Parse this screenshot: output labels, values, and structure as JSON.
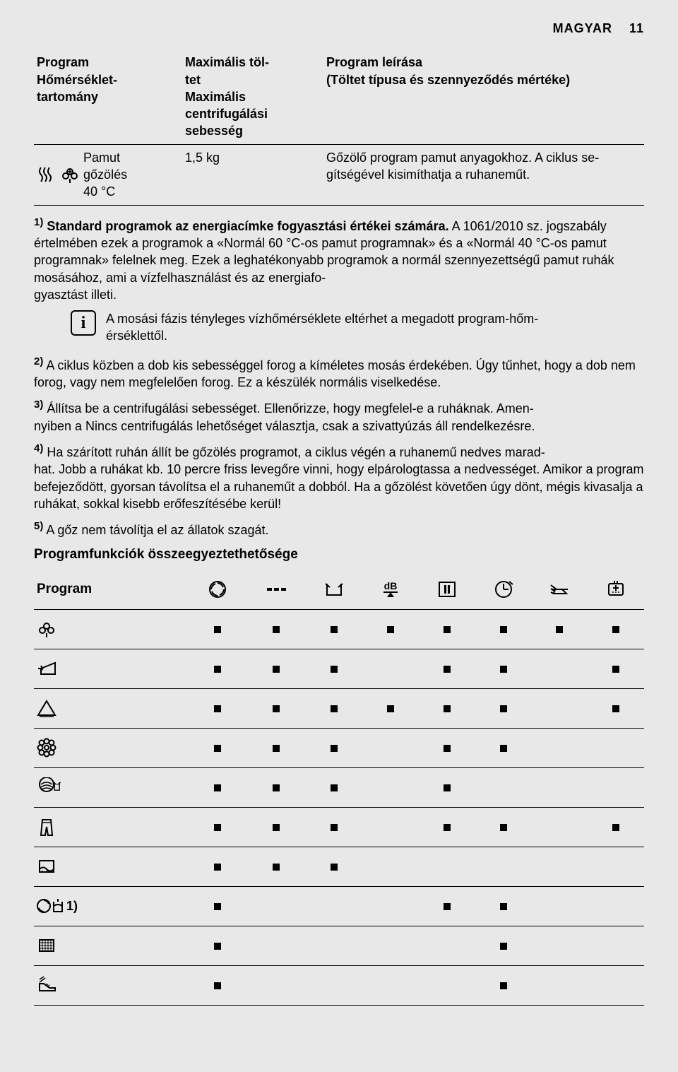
{
  "header": {
    "lang": "MAGYAR",
    "page": "11"
  },
  "desc_table": {
    "head": {
      "c1": "Program\nHőmérséklet-\ntartomány",
      "c2": "Maximális töl-\ntet\nMaximális\ncentrifugálási\nsebesség",
      "c3": "Program leírása\n(Töltet típusa és szennyeződés mértéke)"
    },
    "row": {
      "prog_name": "Pamut\ngőzölés\n40 °C",
      "load": "1,5 kg",
      "desc": "Gőzölő program pamut anyagokhoz. A ciklus se-\ngítségével kisimíthatja a ruhaneműt."
    }
  },
  "foot1_lead": "1)",
  "foot1_bold": " Standard programok az energiacímke fogyasztási értékei számára.",
  "foot1_rest": " A 1061/2010 sz. jogszabály értelmében ezek a programok a «Normál 60 °C-os pamut programnak» és a «Normál 40 °C-os pamut programnak» felelnek meg. Ezek a leghatékonyabb programok a normál szennyezettségű pamut ruhák mosásához, ami a vízfelhasználást és az energiafo-\ngyasztást illeti.",
  "info_text": "A mosási fázis tényleges vízhőmérséklete eltérhet a megadott program-hőm-\nérséklettől.",
  "foot2": "2) A ciklus közben a dob kis sebességgel forog a kíméletes mosás érdekében. Úgy tűnhet, hogy a dob nem forog, vagy nem megfelelően forog. Ez a készülék normális viselkedése.",
  "foot3": "3) Állítsa be a centrifugálási sebességet. Ellenőrizze, hogy megfelel-e a ruháknak. Amen-\nnyiben a Nincs centrifugálás lehetőséget választja, csak a szivattyúzás áll rendelkezésre.",
  "foot4": "4) Ha szárított ruhán állít be gőzölés programot, a ciklus végén a ruhanemű nedves marad-\nhat. Jobb a ruhákat kb. 10 percre friss levegőre vinni, hogy elpárologtassa a nedvességet. Amikor a program befejeződött, gyorsan távolítsa el a ruhaneműt a dobból. Ha a gőzölést követően úgy dönt, mégis kivasalja a ruhákat, sokkal kisebb erőfeszítésébe kerül!",
  "foot5": "5) A gőz nem távolítja el az állatok szagát.",
  "compat_title": "Programfunkciók összeegyeztethetősége",
  "compat": {
    "head_label": "Program",
    "cols": [
      "spin",
      "dash",
      "tub",
      "db",
      "pause",
      "clock",
      "iron",
      "extra"
    ],
    "rows": [
      {
        "icon": "cotton",
        "marks": [
          1,
          1,
          1,
          1,
          1,
          1,
          1,
          1
        ]
      },
      {
        "icon": "arrowback",
        "marks": [
          1,
          1,
          1,
          0,
          1,
          1,
          0,
          1
        ]
      },
      {
        "icon": "triangle",
        "marks": [
          1,
          1,
          1,
          1,
          1,
          1,
          0,
          1
        ]
      },
      {
        "icon": "flower",
        "marks": [
          1,
          1,
          1,
          0,
          1,
          1,
          0,
          0
        ]
      },
      {
        "icon": "wool",
        "marks": [
          1,
          1,
          1,
          0,
          1,
          0,
          0,
          0
        ]
      },
      {
        "icon": "jeans",
        "marks": [
          1,
          1,
          1,
          0,
          1,
          1,
          0,
          1
        ]
      },
      {
        "icon": "curtain",
        "marks": [
          1,
          1,
          1,
          0,
          0,
          0,
          0,
          0
        ]
      },
      {
        "icon": "spin_rinse",
        "marks": [
          1,
          0,
          0,
          0,
          1,
          1,
          0,
          0
        ],
        "sup": "1)"
      },
      {
        "icon": "hatch",
        "marks": [
          1,
          0,
          0,
          0,
          0,
          1,
          0,
          0
        ]
      },
      {
        "icon": "shoe",
        "marks": [
          1,
          0,
          0,
          0,
          0,
          1,
          0,
          0
        ]
      }
    ]
  }
}
